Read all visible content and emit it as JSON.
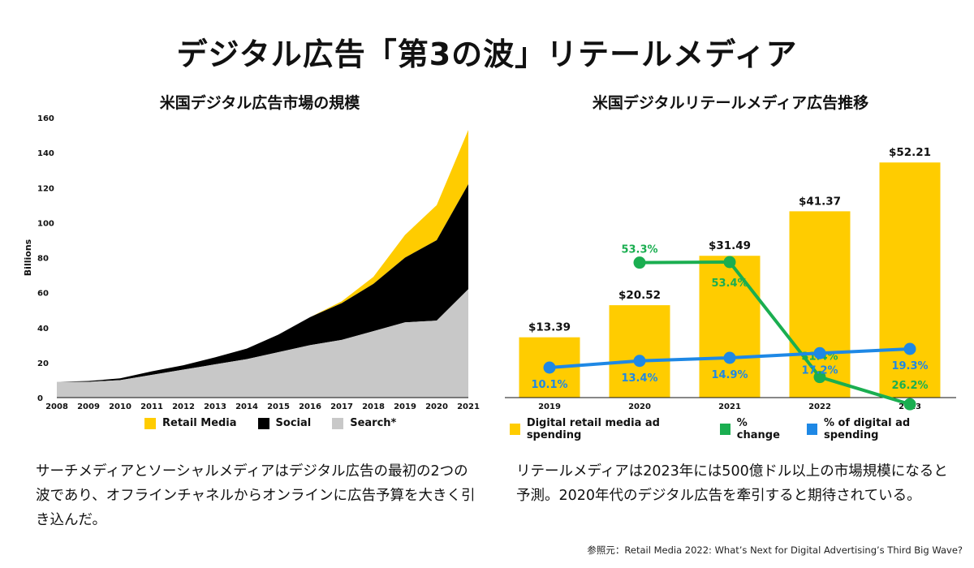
{
  "main_title": "デジタル広告「第3の波」リテールメディア",
  "left_chart_title": "米国デジタル広告市場の規模",
  "right_chart_title": "米国デジタルリテールメディア広告推移",
  "left_legend": [
    {
      "label": "Retail Media",
      "color": "#FFCC00"
    },
    {
      "label": "Social",
      "color": "#000000"
    },
    {
      "label": "Search*",
      "color": "#C8C8C8"
    }
  ],
  "right_legend": [
    {
      "label": "Digital retail media ad spending",
      "color": "#FFCC00"
    },
    {
      "label": "% change",
      "color": "#1AAE50"
    },
    {
      "label": "% of digital ad spending",
      "color": "#1E88E5"
    }
  ],
  "left_body": "サーチメディアとソーシャルメディアはデジタル広告の最初の2つの波であり、オフラインチャネルからオンラインに広告予算を大きく引き込んだ。",
  "right_body": "リテールメディアは2023年には500億ドル以上の市場規模になると予測。2020年代のデジタル広告を牽引すると期待されている。",
  "source": "参照元：Retail Media 2022: What’s Next for Digital Advertising’s Third Big Wave?",
  "chart_data": [
    {
      "type": "area",
      "stacked": true,
      "title": "米国デジタル広告市場の規模",
      "xlabel": "",
      "ylabel": "Billions",
      "x": [
        2008,
        2009,
        2010,
        2011,
        2012,
        2013,
        2014,
        2015,
        2016,
        2017,
        2018,
        2019,
        2020,
        2021
      ],
      "ylim": [
        0,
        160
      ],
      "yticks": [
        0,
        20,
        40,
        60,
        80,
        100,
        120,
        140,
        160
      ],
      "series": [
        {
          "name": "Search*",
          "color": "#C8C8C8",
          "values": [
            9,
            9,
            10,
            13,
            16,
            19,
            22,
            26,
            30,
            33,
            38,
            43,
            44,
            62
          ]
        },
        {
          "name": "Social",
          "color": "#000000",
          "values": [
            0,
            0.5,
            1,
            2,
            2.5,
            4,
            6,
            10,
            16,
            21,
            27,
            37,
            46,
            60
          ]
        },
        {
          "name": "Retail Media",
          "color": "#FFCC00",
          "values": [
            0,
            0,
            0,
            0,
            0,
            0,
            0,
            0,
            0,
            1,
            4,
            13,
            20,
            31
          ]
        }
      ]
    },
    {
      "type": "bar",
      "title": "米国デジタルリテールメディア広告推移",
      "categories": [
        "2019",
        "2020",
        "2021",
        "2022",
        "2023"
      ],
      "ylim": [
        0,
        60
      ],
      "series": [
        {
          "name": "Digital retail media ad spending",
          "color": "#FFCC00",
          "values": [
            13.39,
            20.52,
            31.49,
            41.37,
            52.21
          ],
          "labels": [
            "$13.39",
            "$20.52",
            "$31.49",
            "$41.37",
            "$52.21"
          ]
        },
        {
          "name": "% change",
          "color": "#1AAE50",
          "type": "line",
          "values": [
            null,
            53.3,
            53.4,
            31.4,
            26.2
          ],
          "labels": [
            "",
            "53.3%",
            "53.4%",
            "31.4%",
            "26.2%"
          ]
        },
        {
          "name": "% of digital ad spending",
          "color": "#1E88E5",
          "type": "line",
          "values": [
            10.1,
            13.4,
            14.9,
            17.2,
            19.3
          ],
          "labels": [
            "10.1%",
            "13.4%",
            "14.9%",
            "17.2%",
            "19.3%"
          ]
        }
      ]
    }
  ]
}
